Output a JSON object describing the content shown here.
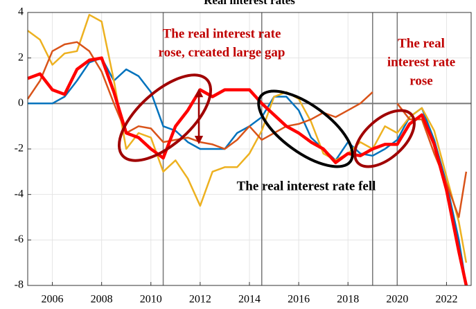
{
  "chart_data": {
    "type": "line",
    "title": "Real interest rates",
    "x": [
      2005,
      2005.5,
      2006,
      2006.5,
      2007,
      2007.5,
      2008,
      2008.5,
      2009,
      2009.5,
      2010,
      2010.5,
      2011,
      2011.5,
      2012,
      2012.5,
      2013,
      2013.5,
      2014,
      2014.5,
      2015,
      2015.5,
      2016,
      2016.5,
      2017,
      2017.5,
      2018,
      2018.5,
      2019,
      2019.5,
      2020,
      2020.5,
      2021,
      2021.5,
      2022,
      2022.5,
      2022.8
    ],
    "series": [
      {
        "color": "#0072BD",
        "values": [
          0,
          0,
          0,
          0.3,
          1.0,
          1.8,
          2.0,
          1.0,
          1.5,
          1.2,
          0.5,
          -1.0,
          -1.2,
          -1.7,
          -2.0,
          -2.0,
          -2.0,
          -1.3,
          -1.0,
          -0.6,
          0.3,
          0.3,
          -0.3,
          -1.5,
          -2.0,
          -2.5,
          -1.7,
          -2.2,
          -2.3,
          -2.0,
          -1.6,
          -0.6,
          -0.2,
          -1.6,
          -3.5,
          -6,
          -8
        ]
      },
      {
        "color": "#EDB120",
        "values": [
          3.2,
          2.8,
          1.7,
          2.2,
          2.3,
          3.9,
          3.6,
          1.0,
          -2.0,
          -1.3,
          -1.5,
          -3.0,
          -2.5,
          -3.3,
          -4.5,
          -3.0,
          -2.8,
          -2.8,
          -2.2,
          -1.2,
          0.3,
          0.5,
          0.2,
          -0.8,
          -2.2,
          -2.5,
          -2.2,
          -1.7,
          -2.0,
          -1.0,
          -1.3,
          -0.6,
          -0.2,
          -1.2,
          -3.2,
          -5.2,
          -7
        ]
      },
      {
        "color": "#D95319",
        "values": [
          0.2,
          1.0,
          2.3,
          2.6,
          2.7,
          2.3,
          1.4,
          0.0,
          -1.3,
          -1.0,
          -1.1,
          -1.7,
          -1.6,
          -1.5,
          -1.7,
          -1.8,
          -2.0,
          -1.6,
          -1.0,
          -1.6,
          -1.3,
          -1.0,
          -0.9,
          -0.7,
          -0.4,
          -0.6,
          -0.3,
          0.0,
          0.5,
          null,
          0.0,
          -0.7,
          -0.7,
          -2.2,
          -3.5,
          -5.0,
          -3.0
        ]
      },
      {
        "color": "#FF0000",
        "values": [
          1.1,
          1.3,
          0.6,
          0.4,
          1.5,
          1.9,
          2.0,
          0.5,
          -1.3,
          -1.5,
          -2.0,
          -2.4,
          -1.0,
          -0.3,
          0.6,
          0.3,
          0.6,
          0.6,
          0.6,
          0.0,
          -0.5,
          -1.0,
          -1.3,
          -1.7,
          -2.0,
          -2.6,
          -2.2,
          -2.3,
          -2.0,
          -1.8,
          -1.8,
          -0.9,
          -0.5,
          -1.8,
          -3.8,
          -6.5,
          -8
        ]
      }
    ],
    "xlim": [
      2005,
      2023
    ],
    "xticks": [
      2006,
      2008,
      2010,
      2012,
      2014,
      2016,
      2018,
      2020,
      2022
    ],
    "ylim": [
      -8,
      4
    ],
    "yticks": [
      -8,
      -6,
      -4,
      -2,
      0,
      2,
      4
    ],
    "grid": true,
    "vlines": [
      2010.5,
      2014.5,
      2019,
      2020
    ],
    "annotations": [
      {
        "lines": [
          "The real interest rate",
          "rose, created large gap"
        ],
        "color": "#C00000"
      },
      {
        "lines": [
          "The real interest rate fell"
        ],
        "color": "#000000"
      },
      {
        "lines": [
          "The real",
          "interest rate",
          "rose"
        ],
        "color": "#C00000"
      }
    ]
  }
}
